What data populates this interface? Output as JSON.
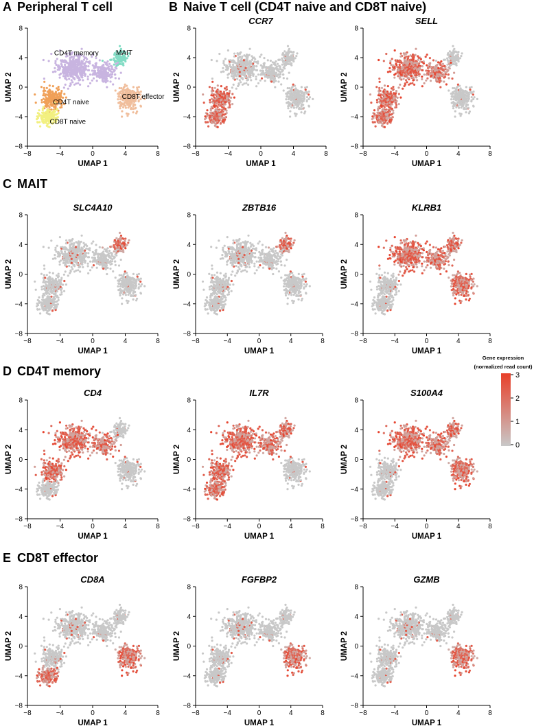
{
  "figure": {
    "colors": {
      "grey": "#c8c8c8",
      "red": "#e8402a",
      "axis": "#000000"
    }
  },
  "sections": [
    {
      "letter": "A",
      "title": "Peripheral T cell"
    },
    {
      "letter": "B",
      "title": "Naive T cell (CD4T naive and CD8T naive)"
    },
    {
      "letter": "C",
      "title": "MAIT"
    },
    {
      "letter": "D",
      "title": "CD4T memory"
    },
    {
      "letter": "E",
      "title": "CD8T effector"
    }
  ],
  "colorbar": {
    "title_line1": "Gene expression",
    "title_line2": "(normalized read count)",
    "ticks": [
      "3",
      "2",
      "1",
      "0"
    ],
    "range": [
      0,
      3
    ],
    "low_color": "#c8c8c8",
    "high_color": "#e8402a"
  },
  "chart_data": [
    {
      "type": "scatter",
      "panel": "A",
      "title": "",
      "xlabel": "UMAP 1",
      "ylabel": "UMAP 2",
      "xlim": [
        -8,
        8
      ],
      "ylim": [
        -8,
        8
      ],
      "xticks": [
        "−8",
        "−4",
        "0",
        "4",
        "8"
      ],
      "yticks": [
        "8",
        "4",
        "0",
        "−4",
        "−8"
      ],
      "clusters": [
        {
          "name": "CD4T memory",
          "color": "#c8b4e0",
          "center": [
            -2.2,
            3.6
          ]
        },
        {
          "name": "MAIT",
          "color": "#82dcc4",
          "center": [
            3.2,
            4.0
          ]
        },
        {
          "name": "CD8T effector",
          "color": "#f0be9c",
          "center": [
            4.6,
            -1.4
          ]
        },
        {
          "name": "CD4T naive",
          "color": "#f0a058",
          "center": [
            -5.2,
            -1.6
          ]
        },
        {
          "name": "CD8T naive",
          "color": "#f2f080",
          "center": [
            -5.6,
            -4.4
          ]
        }
      ]
    },
    {
      "type": "scatter",
      "panel": "B",
      "gene": "CCR7",
      "xlabel": "UMAP 1",
      "ylabel": "UMAP 2",
      "xlim": [
        -8,
        8
      ],
      "ylim": [
        -8,
        8
      ],
      "xticks": [
        "−8",
        "−4",
        "0",
        "4",
        "8"
      ],
      "yticks": [
        "8",
        "4",
        "0",
        "−4",
        "−8"
      ],
      "expression_high_in": [
        "CD4T naive",
        "CD8T naive"
      ]
    },
    {
      "type": "scatter",
      "panel": "B",
      "gene": "SELL",
      "xlabel": "UMAP 1",
      "ylabel": "UMAP 2",
      "xlim": [
        -8,
        8
      ],
      "ylim": [
        -8,
        8
      ],
      "xticks": [
        "−8",
        "−4",
        "0",
        "4",
        "8"
      ],
      "yticks": [
        "8",
        "4",
        "0",
        "−4",
        "−8"
      ],
      "expression_high_in": [
        "CD4T naive",
        "CD8T naive",
        "CD4T memory"
      ]
    },
    {
      "type": "scatter",
      "panel": "C",
      "gene": "SLC4A10",
      "xlabel": "UMAP 1",
      "ylabel": "UMAP 2",
      "xlim": [
        -8,
        8
      ],
      "ylim": [
        -8,
        8
      ],
      "xticks": [
        "−8",
        "−4",
        "0",
        "4",
        "8"
      ],
      "yticks": [
        "8",
        "4",
        "0",
        "−4",
        "−8"
      ],
      "expression_high_in": [
        "MAIT"
      ]
    },
    {
      "type": "scatter",
      "panel": "C",
      "gene": "ZBTB16",
      "xlabel": "UMAP 1",
      "ylabel": "UMAP 2",
      "xlim": [
        -8,
        8
      ],
      "ylim": [
        -8,
        8
      ],
      "xticks": [
        "−8",
        "−4",
        "0",
        "4",
        "8"
      ],
      "yticks": [
        "8",
        "4",
        "0",
        "−4",
        "−8"
      ],
      "expression_high_in": [
        "MAIT"
      ]
    },
    {
      "type": "scatter",
      "panel": "C",
      "gene": "KLRB1",
      "xlabel": "UMAP 1",
      "ylabel": "UMAP 2",
      "xlim": [
        -8,
        8
      ],
      "ylim": [
        -8,
        8
      ],
      "xticks": [
        "−8",
        "−4",
        "0",
        "4",
        "8"
      ],
      "yticks": [
        "8",
        "4",
        "0",
        "−4",
        "−8"
      ],
      "expression_high_in": [
        "MAIT",
        "CD4T memory",
        "CD8T effector"
      ]
    },
    {
      "type": "scatter",
      "panel": "D",
      "gene": "CD4",
      "xlabel": "UMAP 1",
      "ylabel": "UMAP 2",
      "xlim": [
        -8,
        8
      ],
      "ylim": [
        -8,
        8
      ],
      "xticks": [
        "−8",
        "−4",
        "0",
        "4",
        "8"
      ],
      "yticks": [
        "8",
        "4",
        "0",
        "−4",
        "−8"
      ],
      "expression_high_in": [
        "CD4T memory",
        "CD4T naive"
      ]
    },
    {
      "type": "scatter",
      "panel": "D",
      "gene": "IL7R",
      "xlabel": "UMAP 1",
      "ylabel": "UMAP 2",
      "xlim": [
        -8,
        8
      ],
      "ylim": [
        -8,
        8
      ],
      "xticks": [
        "−8",
        "−4",
        "0",
        "4",
        "8"
      ],
      "yticks": [
        "8",
        "4",
        "0",
        "−4",
        "−8"
      ],
      "expression_high_in": [
        "CD4T memory",
        "MAIT",
        "CD4T naive",
        "CD8T naive"
      ]
    },
    {
      "type": "scatter",
      "panel": "D",
      "gene": "S100A4",
      "xlabel": "UMAP 1",
      "ylabel": "UMAP 2",
      "xlim": [
        -8,
        8
      ],
      "ylim": [
        -8,
        8
      ],
      "xticks": [
        "−8",
        "−4",
        "0",
        "4",
        "8"
      ],
      "yticks": [
        "8",
        "4",
        "0",
        "−4",
        "−8"
      ],
      "expression_high_in": [
        "CD4T memory",
        "MAIT",
        "CD8T effector"
      ]
    },
    {
      "type": "scatter",
      "panel": "E",
      "gene": "CD8A",
      "xlabel": "UMAP 1",
      "ylabel": "UMAP 2",
      "xlim": [
        -8,
        8
      ],
      "ylim": [
        -8,
        8
      ],
      "xticks": [
        "−8",
        "−4",
        "0",
        "4",
        "8"
      ],
      "yticks": [
        "8",
        "4",
        "0",
        "−4",
        "−8"
      ],
      "expression_high_in": [
        "CD8T effector",
        "CD8T naive"
      ]
    },
    {
      "type": "scatter",
      "panel": "E",
      "gene": "FGFBP2",
      "xlabel": "UMAP 1",
      "ylabel": "UMAP 2",
      "xlim": [
        -8,
        8
      ],
      "ylim": [
        -8,
        8
      ],
      "xticks": [
        "−8",
        "−4",
        "0",
        "4",
        "8"
      ],
      "yticks": [
        "8",
        "4",
        "0",
        "−4",
        "−8"
      ],
      "expression_high_in": [
        "CD8T effector"
      ]
    },
    {
      "type": "scatter",
      "panel": "E",
      "gene": "GZMB",
      "xlabel": "UMAP 1",
      "ylabel": "UMAP 2",
      "xlim": [
        -8,
        8
      ],
      "ylim": [
        -8,
        8
      ],
      "xticks": [
        "−8",
        "−4",
        "0",
        "4",
        "8"
      ],
      "yticks": [
        "8",
        "4",
        "0",
        "−4",
        "−8"
      ],
      "expression_high_in": [
        "CD8T effector"
      ]
    }
  ]
}
